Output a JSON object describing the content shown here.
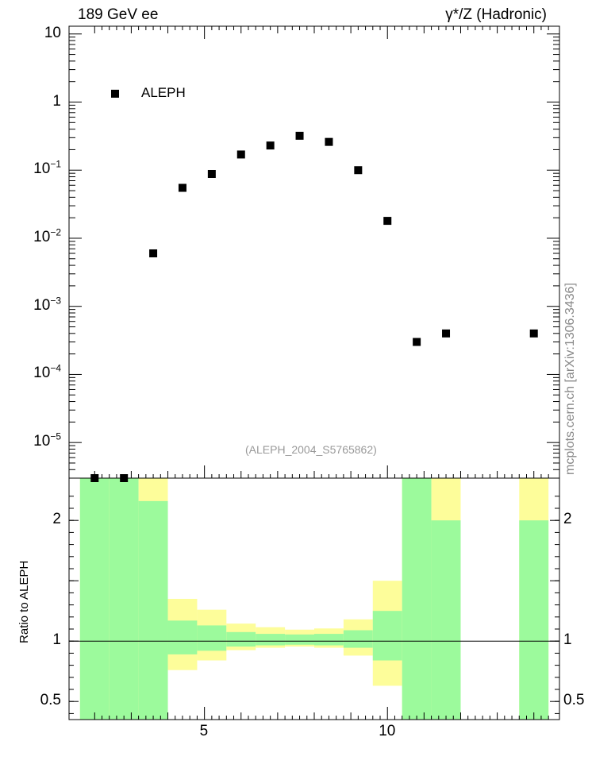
{
  "header": {
    "left": "189 GeV ee",
    "right": "γ*/Z (Hadronic)"
  },
  "side_label": "mcplots.cern.ch [arXiv:1306.3436]",
  "reference": "(ALEPH_2004_S5765862)",
  "legend": {
    "label": "ALEPH",
    "marker_color": "#000000"
  },
  "colors": {
    "band_inner": "#9cfa9c",
    "band_outer": "#fdfd9a",
    "marker": "#000000"
  },
  "chart_data": [
    {
      "type": "scatter",
      "title": "",
      "xlabel": "",
      "ylabel": "",
      "yscale": "log",
      "xlim": [
        1.3,
        14.7
      ],
      "ylim": [
        3e-06,
        13
      ],
      "grid": false,
      "legend_position": "top-left",
      "y_ticks": [
        {
          "base": "10",
          "exp": ""
        },
        {
          "base": "1",
          "exp": ""
        },
        {
          "base": "10",
          "exp": "−1"
        },
        {
          "base": "10",
          "exp": "−2"
        },
        {
          "base": "10",
          "exp": "−3"
        },
        {
          "base": "10",
          "exp": "−4"
        },
        {
          "base": "10",
          "exp": "−5"
        }
      ],
      "series": [
        {
          "name": "ALEPH",
          "x": [
            2.0,
            2.8,
            3.6,
            4.4,
            5.2,
            6.0,
            6.8,
            7.6,
            8.4,
            9.2,
            10.0,
            10.8,
            11.6,
            14.0
          ],
          "y": [
            3e-06,
            3e-06,
            0.006,
            0.055,
            0.088,
            0.17,
            0.23,
            0.32,
            0.26,
            0.1,
            0.018,
            0.0003,
            0.0004,
            0.0004
          ]
        }
      ]
    },
    {
      "type": "area",
      "title": "",
      "xlabel": "",
      "ylabel": "Ratio to ALEPH",
      "xlim": [
        1.3,
        14.7
      ],
      "ylim": [
        0.35,
        2.35
      ],
      "grid": false,
      "x_ticks": [
        "5",
        "10"
      ],
      "y_ticks": [
        "2",
        "1",
        "0.5"
      ],
      "reference_line": 1,
      "bins": [
        {
          "lo": 1.6,
          "hi": 2.4,
          "inner": [
            0.35,
            2.35
          ],
          "outer": [
            0.35,
            2.35
          ]
        },
        {
          "lo": 2.4,
          "hi": 3.2,
          "inner": [
            0.35,
            2.35
          ],
          "outer": [
            0.35,
            2.35
          ]
        },
        {
          "lo": 3.2,
          "hi": 4.0,
          "inner": [
            0.35,
            2.16
          ],
          "outer": [
            0.35,
            2.35
          ]
        },
        {
          "lo": 4.0,
          "hi": 4.8,
          "inner": [
            0.89,
            1.17
          ],
          "outer": [
            0.76,
            1.35
          ]
        },
        {
          "lo": 4.8,
          "hi": 5.6,
          "inner": [
            0.92,
            1.13
          ],
          "outer": [
            0.84,
            1.26
          ]
        },
        {
          "lo": 5.6,
          "hi": 6.4,
          "inner": [
            0.955,
            1.075
          ],
          "outer": [
            0.925,
            1.145
          ]
        },
        {
          "lo": 6.4,
          "hi": 7.2,
          "inner": [
            0.965,
            1.06
          ],
          "outer": [
            0.945,
            1.115
          ]
        },
        {
          "lo": 7.2,
          "hi": 8.0,
          "inner": [
            0.97,
            1.055
          ],
          "outer": [
            0.955,
            1.095
          ]
        },
        {
          "lo": 8.0,
          "hi": 8.8,
          "inner": [
            0.965,
            1.06
          ],
          "outer": [
            0.945,
            1.105
          ]
        },
        {
          "lo": 8.8,
          "hi": 9.6,
          "inner": [
            0.945,
            1.09
          ],
          "outer": [
            0.88,
            1.18
          ]
        },
        {
          "lo": 9.6,
          "hi": 10.4,
          "inner": [
            0.84,
            1.25
          ],
          "outer": [
            0.63,
            1.5
          ]
        },
        {
          "lo": 10.4,
          "hi": 11.2,
          "inner": [
            0.35,
            2.35
          ],
          "outer": [
            0.35,
            2.35
          ]
        },
        {
          "lo": 11.2,
          "hi": 12.0,
          "inner": [
            0.35,
            2.0
          ],
          "outer": [
            0.35,
            2.35
          ]
        },
        {
          "lo": 13.6,
          "hi": 14.4,
          "inner": [
            0.35,
            2.0
          ],
          "outer": [
            0.35,
            2.35
          ]
        }
      ]
    }
  ]
}
